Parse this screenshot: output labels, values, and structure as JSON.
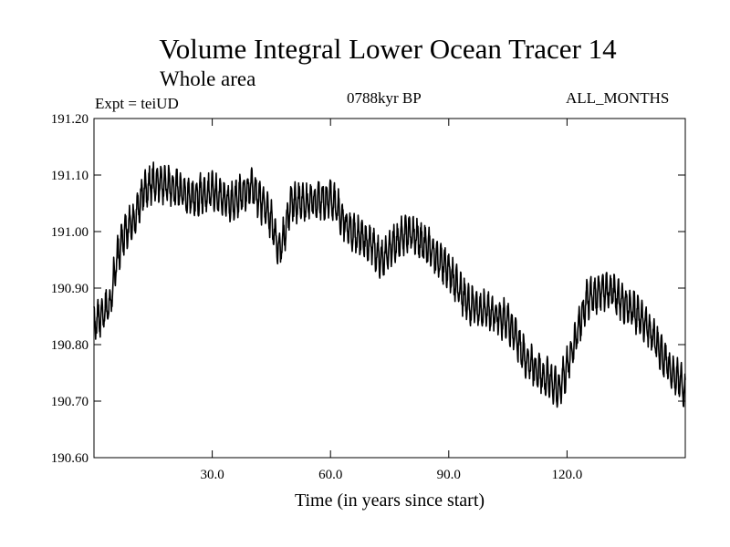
{
  "title": "Volume Integral Lower Ocean Tracer 14",
  "subtitle": "Whole area",
  "experiment": "Expt = teiUD",
  "period": "0788kyr BP",
  "months": "ALL_MONTHS",
  "chart_data": {
    "type": "line",
    "title": "Volume Integral Lower Ocean Tracer 14",
    "subtitle": "Whole area",
    "xlabel": "Time (in years since start)",
    "ylabel": "",
    "xlim": [
      0,
      150
    ],
    "ylim": [
      190.6,
      191.2
    ],
    "x_ticks": [
      30,
      60,
      90,
      120
    ],
    "x_tick_labels": [
      "30.0",
      "60.0",
      "90.0",
      "120.0"
    ],
    "y_ticks": [
      190.6,
      190.7,
      190.8,
      190.9,
      191.0,
      191.1,
      191.2
    ],
    "y_tick_labels": [
      "190.60",
      "190.70",
      "190.80",
      "190.90",
      "191.00",
      "191.10",
      "191.20"
    ],
    "series": [
      {
        "name": "Volume Integral Lower Ocean Tracer 14",
        "sampling": "monthly",
        "color": "#000000",
        "envelope_x": [
          0,
          2,
          4,
          6,
          8,
          10,
          12,
          15,
          20,
          25,
          30,
          35,
          40,
          45,
          47,
          50,
          55,
          60,
          65,
          70,
          73,
          75,
          80,
          85,
          90,
          95,
          100,
          105,
          110,
          115,
          118,
          120,
          125,
          130,
          135,
          140,
          145,
          150
        ],
        "envelope_y": [
          190.84,
          190.85,
          190.87,
          190.96,
          191.0,
          191.02,
          191.06,
          191.09,
          191.08,
          191.06,
          191.07,
          191.05,
          191.08,
          191.02,
          190.96,
          191.05,
          191.05,
          191.06,
          191.0,
          190.98,
          190.95,
          190.97,
          191.0,
          190.97,
          190.93,
          190.87,
          190.86,
          190.84,
          190.77,
          190.74,
          190.72,
          190.76,
          190.88,
          190.9,
          190.87,
          190.84,
          190.77,
          190.72
        ],
        "seasonal_amplitude": 0.028,
        "noise_amplitude": 0.012,
        "min_value": 190.665,
        "max_value": 191.14
      }
    ]
  }
}
